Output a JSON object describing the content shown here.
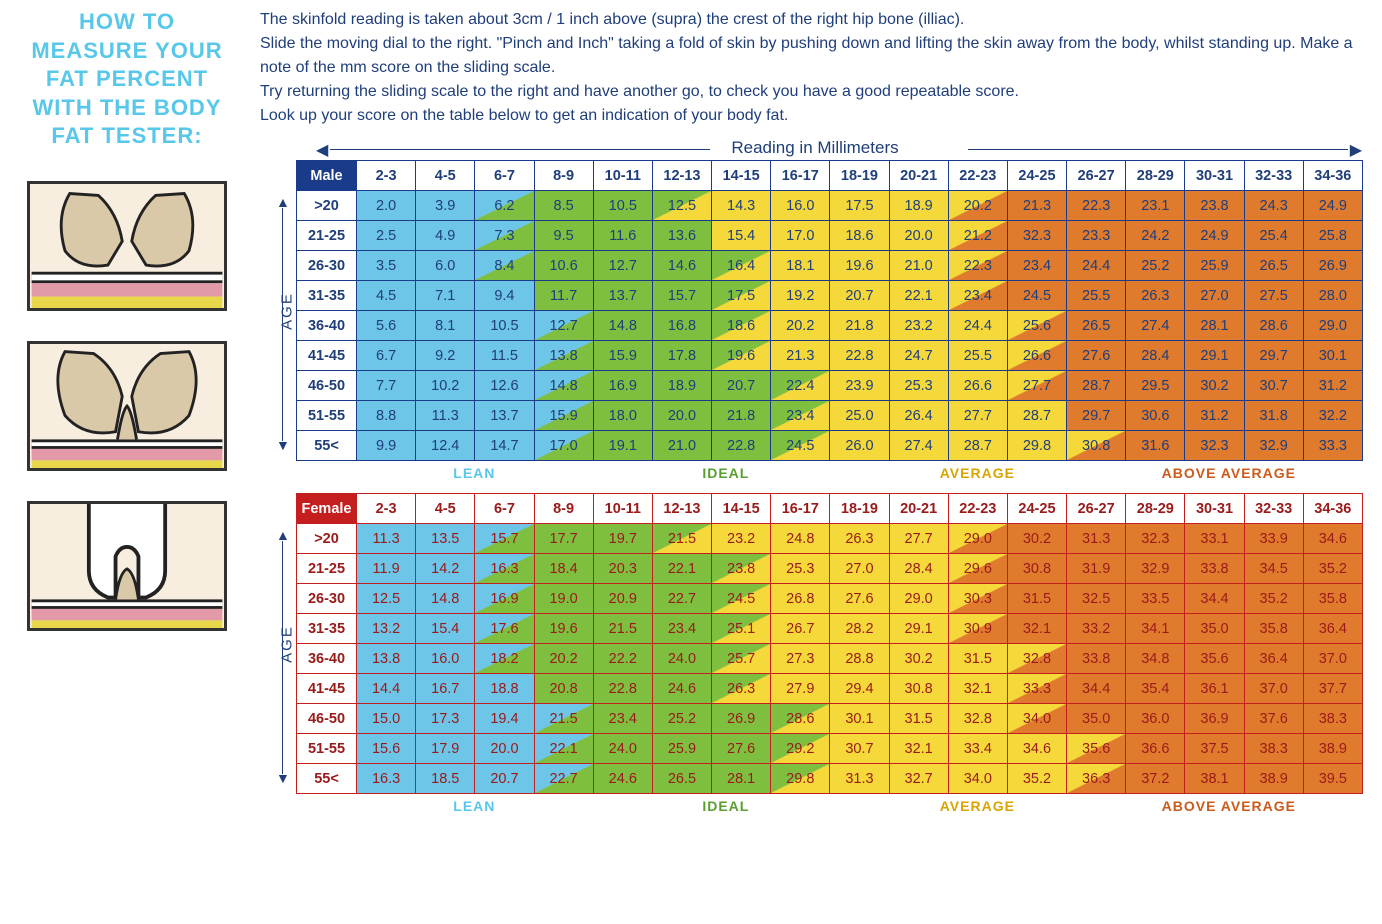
{
  "title_lines": [
    "HOW TO",
    "MEASURE YOUR",
    "FAT PERCENT",
    "WITH THE BODY",
    "FAT TESTER:"
  ],
  "title_color": "#57c7ea",
  "intro_lines": [
    "The skinfold reading is taken about 3cm / 1 inch above (supra) the crest of the right hip bone (illiac).",
    "Slide the moving dial to the right. \"Pinch and Inch\" taking a fold of skin by pushing down and lifting the skin away from the body, whilst standing up. Make a note of the mm score on the sliding scale.",
    "Try returning the sliding scale to the right and have another go, to check you have a good repeatable score.",
    "Look up your score on the table below to get an indication of your body fat."
  ],
  "intro_color": "#1f3e7a",
  "mm_header": "Reading in Millimeters",
  "age_label": "AGE",
  "col_headers": [
    "2-3",
    "4-5",
    "6-7",
    "8-9",
    "10-11",
    "12-13",
    "14-15",
    "16-17",
    "18-19",
    "20-21",
    "22-23",
    "24-25",
    "26-27",
    "28-29",
    "30-31",
    "32-33",
    "34-36"
  ],
  "age_rows": [
    ">20",
    "21-25",
    "26-30",
    "31-35",
    "36-40",
    "41-45",
    "46-50",
    "51-55",
    "55<"
  ],
  "zone_colors": {
    "lean": "#6dc5e8",
    "ideal": "#7fbf3f",
    "average": "#f5d93a",
    "above": "#e07b2e"
  },
  "categories": [
    {
      "label": "LEAN",
      "color": "#57c7ea"
    },
    {
      "label": "IDEAL",
      "color": "#5a9e2f"
    },
    {
      "label": "AVERAGE",
      "color": "#d9a400"
    },
    {
      "label": "ABOVE AVERAGE",
      "color": "#cc5a1a"
    }
  ],
  "cat_col_starts": [
    1,
    6,
    10,
    14
  ],
  "male": {
    "label": "Male",
    "border_color": "#1a3a8a",
    "text_color": "#1f3e7a",
    "data": [
      [
        "2.0",
        "3.9",
        "6.2",
        "8.5",
        "10.5",
        "12.5",
        "14.3",
        "16.0",
        "17.5",
        "18.9",
        "20.2",
        "21.3",
        "22.3",
        "23.1",
        "23.8",
        "24.3",
        "24.9"
      ],
      [
        "2.5",
        "4.9",
        "7.3",
        "9.5",
        "11.6",
        "13.6",
        "15.4",
        "17.0",
        "18.6",
        "20.0",
        "21.2",
        "32.3",
        "23.3",
        "24.2",
        "24.9",
        "25.4",
        "25.8"
      ],
      [
        "3.5",
        "6.0",
        "8.4",
        "10.6",
        "12.7",
        "14.6",
        "16.4",
        "18.1",
        "19.6",
        "21.0",
        "22.3",
        "23.4",
        "24.4",
        "25.2",
        "25.9",
        "26.5",
        "26.9"
      ],
      [
        "4.5",
        "7.1",
        "9.4",
        "11.7",
        "13.7",
        "15.7",
        "17.5",
        "19.2",
        "20.7",
        "22.1",
        "23.4",
        "24.5",
        "25.5",
        "26.3",
        "27.0",
        "27.5",
        "28.0"
      ],
      [
        "5.6",
        "8.1",
        "10.5",
        "12.7",
        "14.8",
        "16.8",
        "18.6",
        "20.2",
        "21.8",
        "23.2",
        "24.4",
        "25.6",
        "26.5",
        "27.4",
        "28.1",
        "28.6",
        "29.0"
      ],
      [
        "6.7",
        "9.2",
        "11.5",
        "13.8",
        "15.9",
        "17.8",
        "19.6",
        "21.3",
        "22.8",
        "24.7",
        "25.5",
        "26.6",
        "27.6",
        "28.4",
        "29.1",
        "29.7",
        "30.1"
      ],
      [
        "7.7",
        "10.2",
        "12.6",
        "14.8",
        "16.9",
        "18.9",
        "20.7",
        "22.4",
        "23.9",
        "25.3",
        "26.6",
        "27.7",
        "28.7",
        "29.5",
        "30.2",
        "30.7",
        "31.2"
      ],
      [
        "8.8",
        "11.3",
        "13.7",
        "15.9",
        "18.0",
        "20.0",
        "21.8",
        "23.4",
        "25.0",
        "26.4",
        "27.7",
        "28.7",
        "29.7",
        "30.6",
        "31.2",
        "31.8",
        "32.2"
      ],
      [
        "9.9",
        "12.4",
        "14.7",
        "17.0",
        "19.1",
        "21.0",
        "22.8",
        "24.5",
        "26.0",
        "27.4",
        "28.7",
        "29.8",
        "30.8",
        "31.6",
        "32.3",
        "32.9",
        "33.3"
      ]
    ],
    "zone_boundaries_comment": "for each row, [ideal_start_col, average_start_col, above_start_col] as fractional column index (0-based into data cols)",
    "zone_boundaries": [
      [
        2.7,
        5.9,
        10.1
      ],
      [
        2.8,
        6.0,
        10.2
      ],
      [
        2.9,
        6.2,
        10.4
      ],
      [
        3.0,
        6.4,
        10.8
      ],
      [
        3.1,
        6.7,
        11.1
      ],
      [
        3.3,
        6.9,
        11.4
      ],
      [
        3.4,
        7.2,
        11.7
      ],
      [
        3.6,
        7.4,
        12.0
      ],
      [
        3.9,
        7.7,
        12.2
      ]
    ]
  },
  "female": {
    "label": "Female",
    "border_color": "#c41e1e",
    "text_color": "#9a1a1a",
    "data": [
      [
        "11.3",
        "13.5",
        "15.7",
        "17.7",
        "19.7",
        "21.5",
        "23.2",
        "24.8",
        "26.3",
        "27.7",
        "29.0",
        "30.2",
        "31.3",
        "32.3",
        "33.1",
        "33.9",
        "34.6"
      ],
      [
        "11.9",
        "14.2",
        "16.3",
        "18.4",
        "20.3",
        "22.1",
        "23.8",
        "25.3",
        "27.0",
        "28.4",
        "29.6",
        "30.8",
        "31.9",
        "32.9",
        "33.8",
        "34.5",
        "35.2"
      ],
      [
        "12.5",
        "14.8",
        "16.9",
        "19.0",
        "20.9",
        "22.7",
        "24.5",
        "26.8",
        "27.6",
        "29.0",
        "30.3",
        "31.5",
        "32.5",
        "33.5",
        "34.4",
        "35.2",
        "35.8"
      ],
      [
        "13.2",
        "15.4",
        "17.6",
        "19.6",
        "21.5",
        "23.4",
        "25.1",
        "26.7",
        "28.2",
        "29.1",
        "30.9",
        "32.1",
        "33.2",
        "34.1",
        "35.0",
        "35.8",
        "36.4"
      ],
      [
        "13.8",
        "16.0",
        "18.2",
        "20.2",
        "22.2",
        "24.0",
        "25.7",
        "27.3",
        "28.8",
        "30.2",
        "31.5",
        "32.8",
        "33.8",
        "34.8",
        "35.6",
        "36.4",
        "37.0"
      ],
      [
        "14.4",
        "16.7",
        "18.8",
        "20.8",
        "22.8",
        "24.6",
        "26.3",
        "27.9",
        "29.4",
        "30.8",
        "32.1",
        "33.3",
        "34.4",
        "35.4",
        "36.1",
        "37.0",
        "37.7"
      ],
      [
        "15.0",
        "17.3",
        "19.4",
        "21.5",
        "23.4",
        "25.2",
        "26.9",
        "28.6",
        "30.1",
        "31.5",
        "32.8",
        "34.0",
        "35.0",
        "36.0",
        "36.9",
        "37.6",
        "38.3"
      ],
      [
        "15.6",
        "17.9",
        "20.0",
        "22.1",
        "24.0",
        "25.9",
        "27.6",
        "29.2",
        "30.7",
        "32.1",
        "33.4",
        "34.6",
        "35.6",
        "36.6",
        "37.5",
        "38.3",
        "38.9"
      ],
      [
        "16.3",
        "18.5",
        "20.7",
        "22.7",
        "24.6",
        "26.5",
        "28.1",
        "29.8",
        "31.3",
        "32.7",
        "34.0",
        "35.2",
        "36.3",
        "37.2",
        "38.1",
        "38.9",
        "39.5"
      ]
    ],
    "zone_boundaries": [
      [
        2.1,
        5.9,
        10.1
      ],
      [
        2.2,
        6.1,
        10.3
      ],
      [
        2.4,
        6.3,
        10.6
      ],
      [
        2.6,
        6.5,
        10.9
      ],
      [
        2.8,
        6.7,
        11.2
      ],
      [
        3.0,
        6.9,
        11.5
      ],
      [
        3.2,
        7.2,
        11.8
      ],
      [
        3.5,
        7.4,
        12.1
      ],
      [
        3.8,
        7.7,
        12.3
      ]
    ]
  }
}
